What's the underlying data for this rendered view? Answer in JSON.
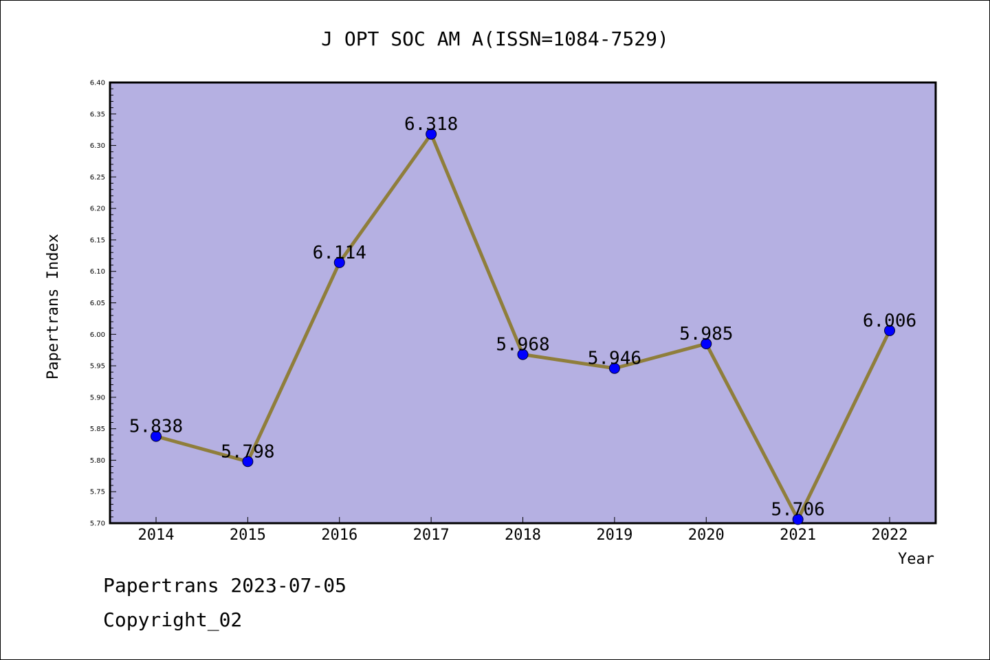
{
  "footer": {
    "line1": "Papertrans 2023-07-05",
    "line2": "Copyright_02"
  },
  "colors": {
    "plot_background": "#b5b0e2",
    "line": "#8f7e3b",
    "marker": "#0000ff",
    "frame": "#000000"
  },
  "chart_data": {
    "type": "line",
    "title": "J OPT SOC AM A(ISSN=1084-7529)",
    "xlabel": "Year",
    "ylabel": "Papertrans Index",
    "categories": [
      "2014",
      "2015",
      "2016",
      "2017",
      "2018",
      "2019",
      "2020",
      "2021",
      "2022"
    ],
    "series": [
      {
        "values": [
          5.838,
          5.798,
          6.114,
          6.318,
          5.968,
          5.946,
          5.985,
          5.706,
          6.006
        ],
        "labels": [
          "5.838",
          "5.798",
          "6.114",
          "6.318",
          "5.968",
          "5.946",
          "5.985",
          "5.706",
          "6.006"
        ]
      }
    ],
    "ylim": [
      5.7,
      6.4
    ],
    "yticks": [
      "5.70",
      "5.75",
      "5.80",
      "5.85",
      "5.90",
      "5.95",
      "6.00",
      "6.05",
      "6.10",
      "6.15",
      "6.20",
      "6.25",
      "6.30",
      "6.35",
      "6.40"
    ],
    "grid": false,
    "legend": "none"
  }
}
